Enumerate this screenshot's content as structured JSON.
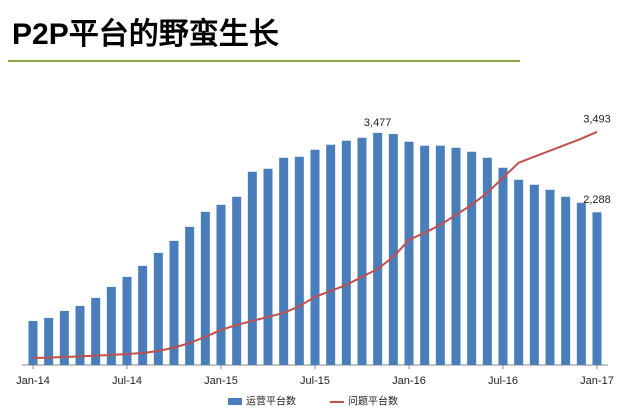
{
  "chart_data": {
    "type": "bar-line",
    "title": "P2P平台的野蛮生长",
    "categories": [
      "Jan-14",
      null,
      null,
      null,
      null,
      null,
      "Jul-14",
      null,
      null,
      null,
      null,
      null,
      "Jan-15",
      null,
      null,
      null,
      null,
      null,
      "Jul-15",
      null,
      null,
      null,
      null,
      null,
      "Jan-16",
      null,
      null,
      null,
      null,
      null,
      "Jul-16",
      null,
      null,
      null,
      null,
      null,
      "Jan-17"
    ],
    "ylim": [
      0,
      4000
    ],
    "series": [
      {
        "name": "运营平台数",
        "type": "bar",
        "color": "#4a7ebb",
        "values": [
          660,
          705,
          810,
          885,
          1005,
          1170,
          1320,
          1485,
          1680,
          1860,
          2070,
          2295,
          2400,
          2520,
          2895,
          2940,
          3105,
          3120,
          3225,
          3300,
          3360,
          3405,
          3477,
          3460,
          3345,
          3285,
          3285,
          3255,
          3195,
          3105,
          2955,
          2775,
          2700,
          2625,
          2520,
          2430,
          2288
        ],
        "value_labels": [
          null,
          null,
          null,
          null,
          null,
          null,
          null,
          null,
          null,
          null,
          null,
          null,
          null,
          null,
          null,
          null,
          null,
          null,
          null,
          null,
          null,
          null,
          "3,477",
          null,
          null,
          null,
          null,
          null,
          null,
          null,
          null,
          null,
          null,
          null,
          null,
          null,
          "2,288"
        ]
      },
      {
        "name": "问题平台数",
        "type": "line",
        "color": "#c0504d",
        "values": [
          105,
          110,
          120,
          130,
          140,
          150,
          165,
          180,
          210,
          260,
          330,
          420,
          525,
          600,
          660,
          720,
          780,
          880,
          1020,
          1110,
          1200,
          1320,
          1440,
          1620,
          1875,
          1980,
          2100,
          2250,
          2400,
          2580,
          2805,
          3030,
          3120,
          3210,
          3300,
          3390,
          3493
        ],
        "value_labels": [
          null,
          null,
          null,
          null,
          null,
          null,
          null,
          null,
          null,
          null,
          null,
          null,
          null,
          null,
          null,
          null,
          null,
          null,
          null,
          null,
          null,
          null,
          null,
          null,
          null,
          null,
          null,
          null,
          null,
          null,
          null,
          null,
          null,
          null,
          null,
          null,
          "3,493"
        ]
      }
    ]
  }
}
